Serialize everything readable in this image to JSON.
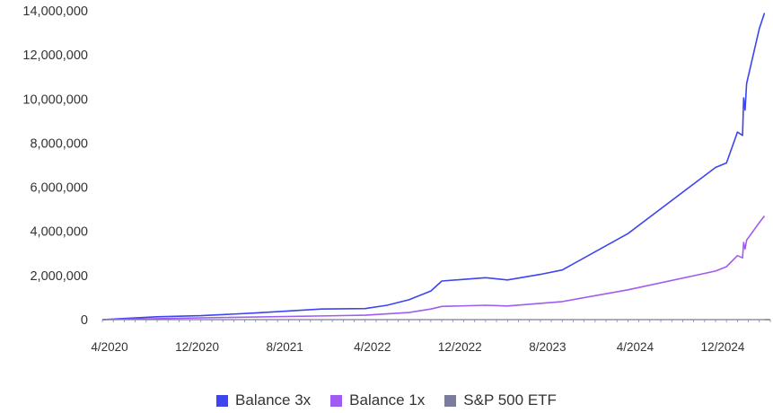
{
  "chart_data": {
    "type": "line",
    "y_ticks": [
      "14,000,000",
      "12,000,000",
      "10,000,000",
      "8,000,000",
      "6,000,000",
      "4,000,000",
      "2,000,000",
      "0"
    ],
    "x_ticks": [
      "4/2020",
      "12/2020",
      "8/2021",
      "4/2022",
      "12/2022",
      "8/2023",
      "4/2024",
      "12/2024"
    ],
    "ylim": [
      0,
      14000000
    ],
    "xlim": [
      "2020-04",
      "2025-05"
    ],
    "grid": false,
    "legend_placement": "bottom",
    "series": [
      {
        "name": "Balance 3x",
        "color": "#3d44f0",
        "points": [
          [
            "2020-04",
            0
          ],
          [
            "2020-09",
            130000
          ],
          [
            "2021-01",
            180000
          ],
          [
            "2021-06",
            300000
          ],
          [
            "2021-12",
            480000
          ],
          [
            "2022-04",
            500000
          ],
          [
            "2022-06",
            650000
          ],
          [
            "2022-08",
            900000
          ],
          [
            "2022-10",
            1300000
          ],
          [
            "2022-11",
            1750000
          ],
          [
            "2023-03",
            1900000
          ],
          [
            "2023-05",
            1800000
          ],
          [
            "2023-08",
            2050000
          ],
          [
            "2023-10",
            2250000
          ],
          [
            "2024-04",
            3900000
          ],
          [
            "2024-12",
            6900000
          ],
          [
            "2025-01",
            7100000
          ],
          [
            "2025-02",
            8500000
          ],
          [
            "2025-02-15",
            8350000
          ],
          [
            "2025-02-18",
            10050000
          ],
          [
            "2025-02-22",
            9500000
          ],
          [
            "2025-02-26",
            10700000
          ],
          [
            "2025-04",
            13200000
          ],
          [
            "2025-04-15",
            13900000
          ]
        ]
      },
      {
        "name": "Balance 1x",
        "color": "#a05cf0",
        "points": [
          [
            "2020-04",
            0
          ],
          [
            "2021-01",
            80000
          ],
          [
            "2022-04",
            200000
          ],
          [
            "2022-08",
            320000
          ],
          [
            "2022-10",
            480000
          ],
          [
            "2022-11",
            600000
          ],
          [
            "2023-03",
            650000
          ],
          [
            "2023-05",
            620000
          ],
          [
            "2023-10",
            820000
          ],
          [
            "2024-04",
            1350000
          ],
          [
            "2024-12",
            2200000
          ],
          [
            "2025-01",
            2400000
          ],
          [
            "2025-02",
            2900000
          ],
          [
            "2025-02-15",
            2800000
          ],
          [
            "2025-02-18",
            3500000
          ],
          [
            "2025-02-22",
            3200000
          ],
          [
            "2025-02-26",
            3600000
          ],
          [
            "2025-04",
            4400000
          ],
          [
            "2025-04-15",
            4700000
          ]
        ]
      },
      {
        "name": "S&P 500 ETF",
        "color": "#7a7c9e",
        "points": [
          [
            "2020-04",
            0
          ],
          [
            "2025-04-15",
            0
          ]
        ]
      }
    ]
  }
}
